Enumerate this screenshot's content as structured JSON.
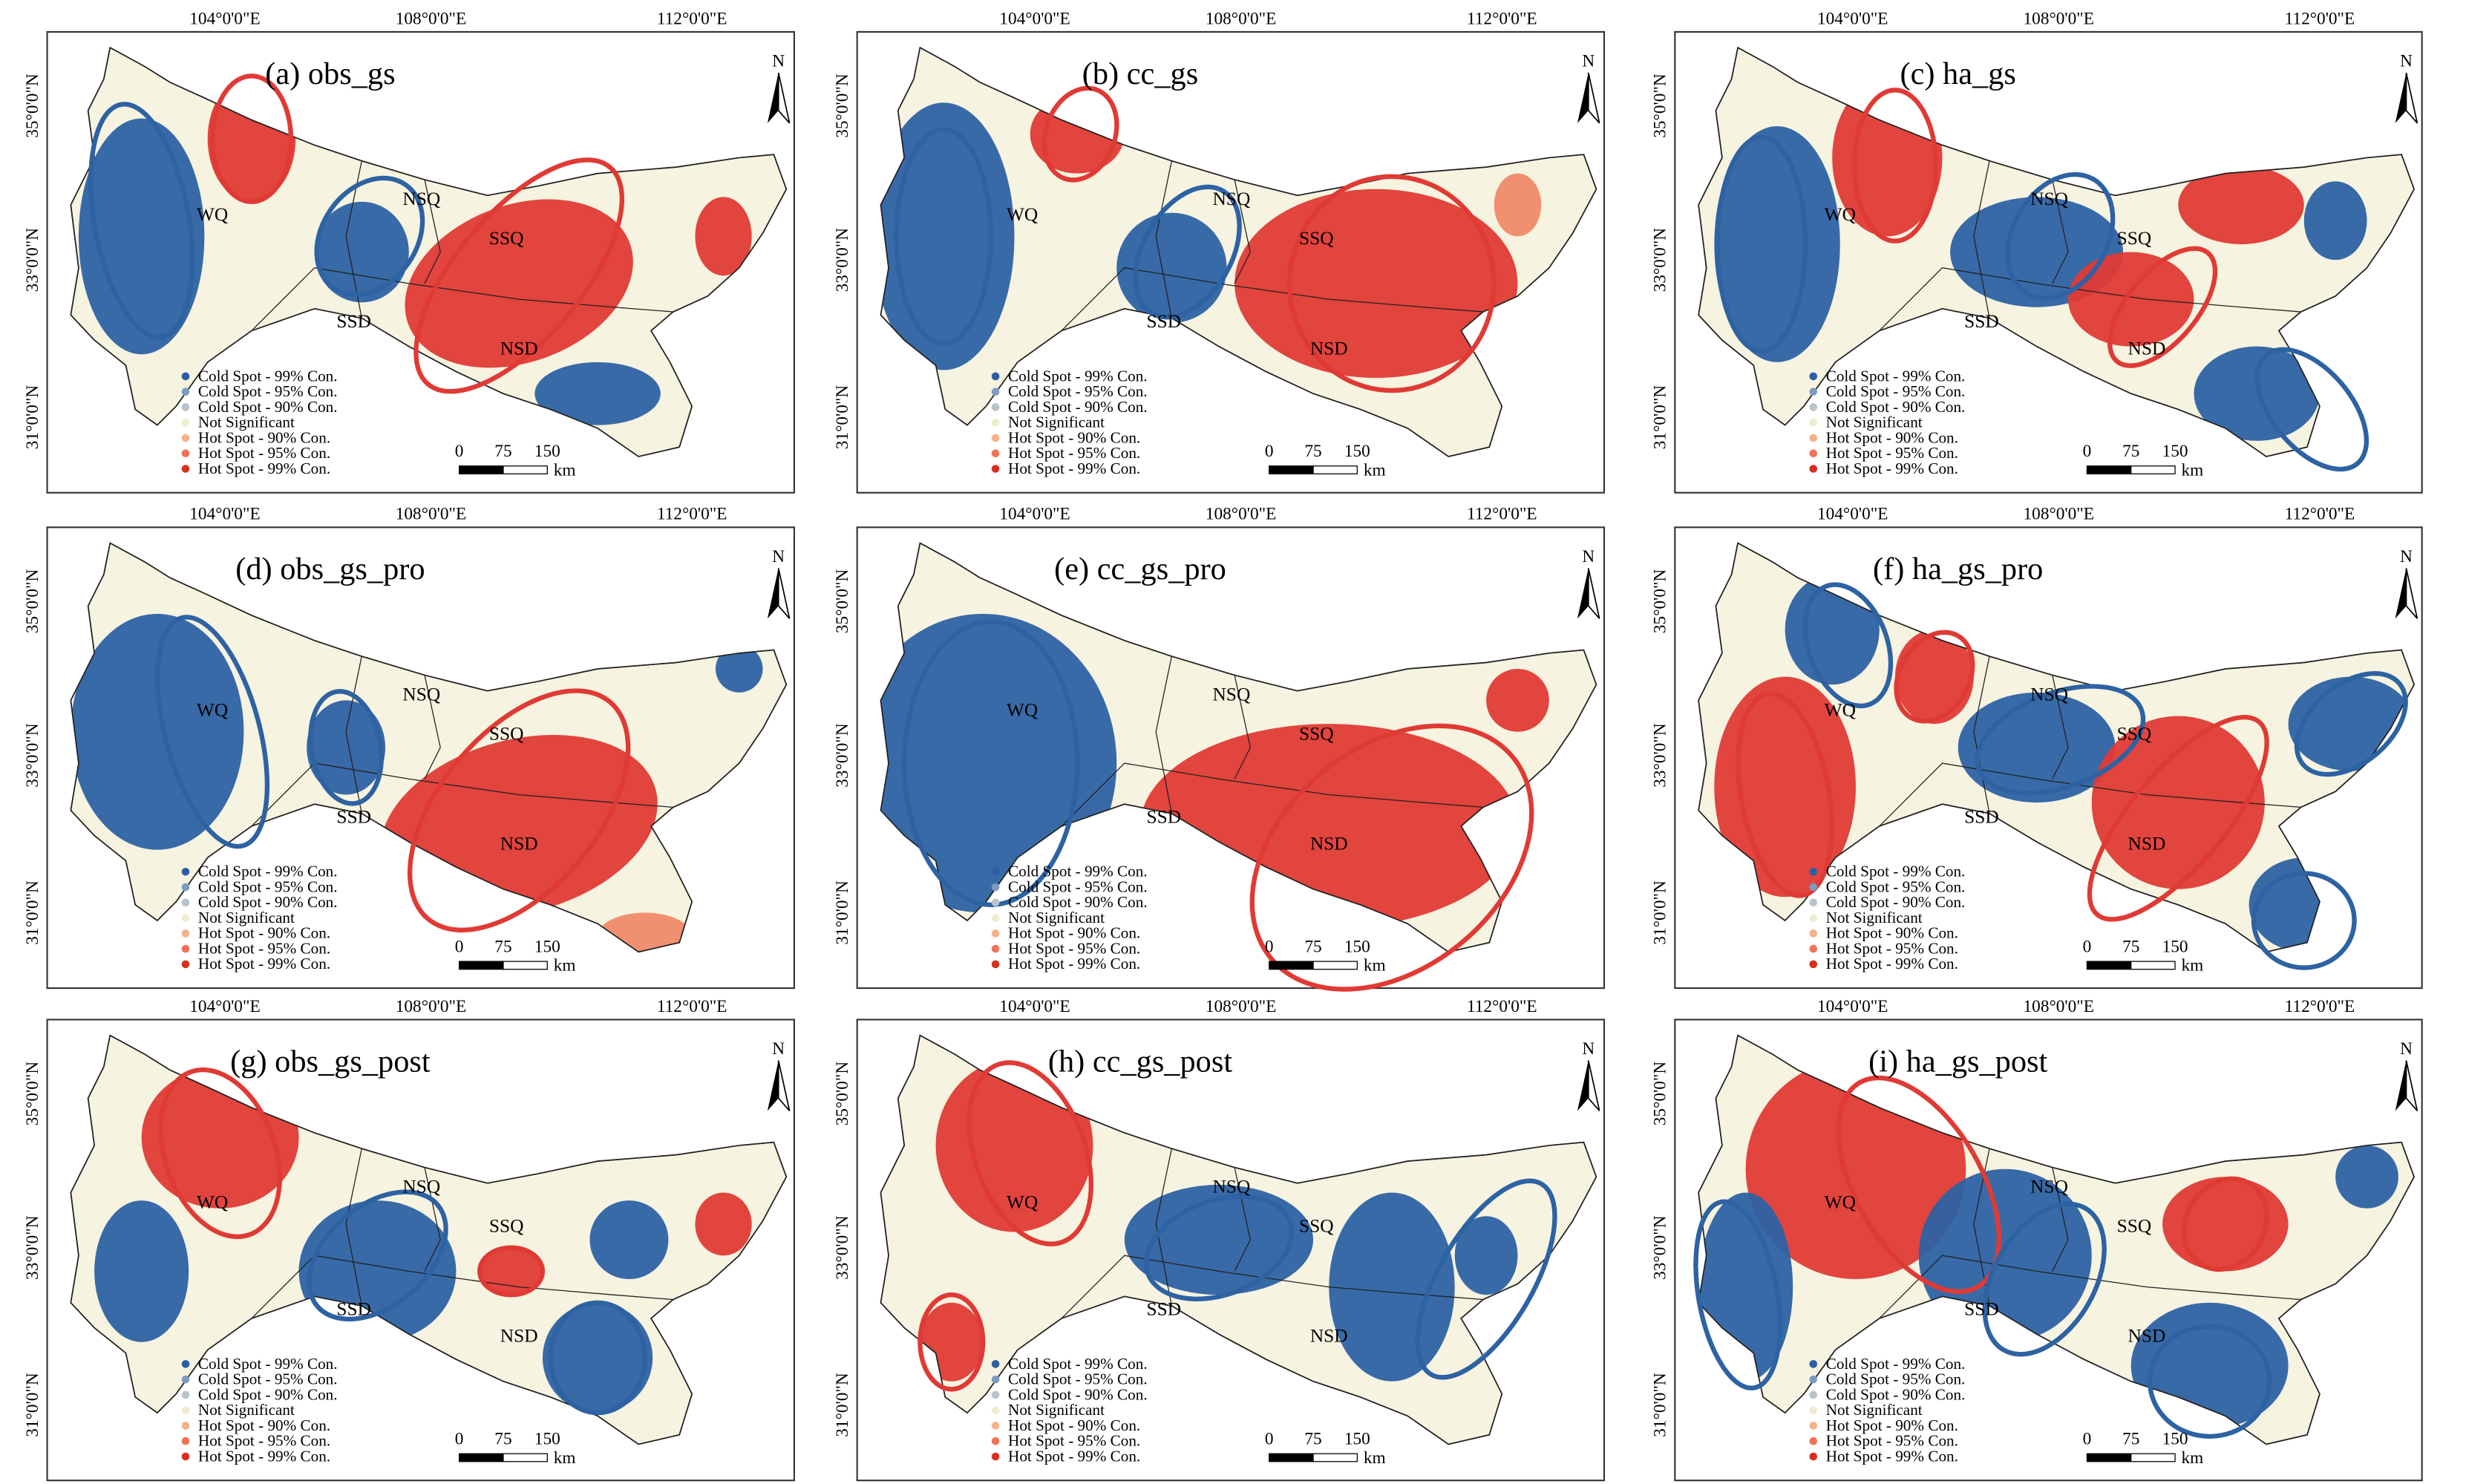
{
  "lon_labels": [
    "104°0'0\"E",
    "108°0'0\"E",
    "112°0'0\"E"
  ],
  "lat_labels": [
    "35°0'0\"N",
    "33°0'0\"N",
    "31°0'0\"N"
  ],
  "legend": [
    {
      "label": "Cold Spot - 99% Con.",
      "color": "#2b5fa0"
    },
    {
      "label": "Cold Spot - 95% Con.",
      "color": "#7b9cc0"
    },
    {
      "label": "Cold Spot - 90% Con.",
      "color": "#b7c4cc"
    },
    {
      "label": "Not Significant",
      "color": "#efeccf"
    },
    {
      "label": "Hot Spot - 90% Con.",
      "color": "#f3b28c"
    },
    {
      "label": "Hot Spot - 95% Con.",
      "color": "#ee7358"
    },
    {
      "label": "Hot Spot - 99% Con.",
      "color": "#d7301f"
    }
  ],
  "scale_labels": [
    "0",
    "75",
    "150"
  ],
  "scale_unit": "km",
  "north": "N",
  "regions": [
    "WQ",
    "NSQ",
    "SSQ",
    "SSD",
    "NSD"
  ],
  "panels": [
    {
      "title": "(a) obs_gs"
    },
    {
      "title": "(b) cc_gs"
    },
    {
      "title": "(c) ha_gs"
    },
    {
      "title": "(d) obs_gs_pro"
    },
    {
      "title": "(e) cc_gs_pro"
    },
    {
      "title": "(f) ha_gs_pro"
    },
    {
      "title": "(g) obs_gs_post"
    },
    {
      "title": "(h) cc_gs_post"
    },
    {
      "title": "(i) ha_gs_post"
    }
  ]
}
